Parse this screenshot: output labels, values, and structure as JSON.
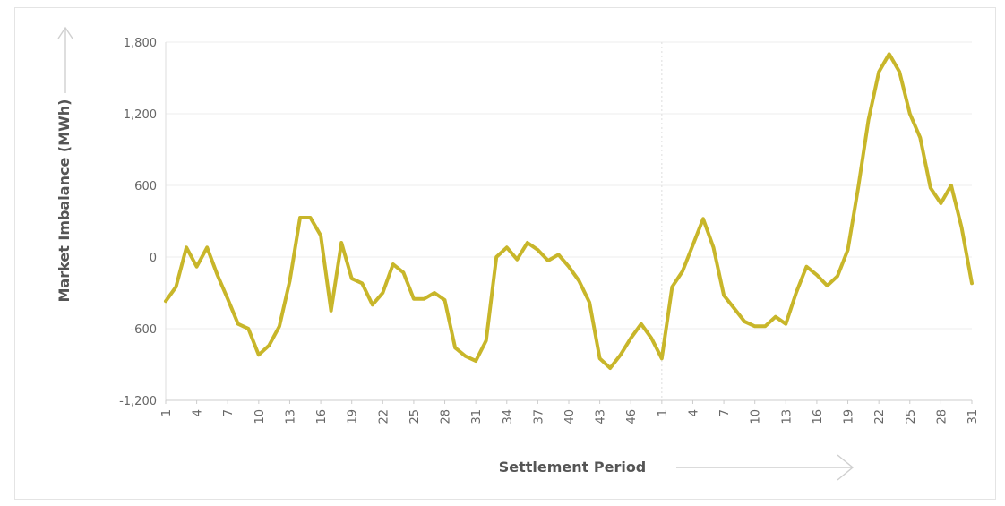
{
  "chart_data": {
    "type": "line",
    "title": "",
    "xlabel": "Settlement Period",
    "ylabel": "Market Imbalance (MWh)",
    "ylim": [
      -1200,
      1800
    ],
    "yticks": [
      -1200,
      -600,
      0,
      600,
      1200,
      1800
    ],
    "ytick_labels": [
      "-1,200",
      "-600",
      "0",
      "600",
      "1,200",
      "1,800"
    ],
    "grid": true,
    "legend": "none",
    "line_color": "#c8b62a",
    "x_tick_labels": [
      "1",
      "4",
      "7",
      "10",
      "13",
      "16",
      "19",
      "22",
      "25",
      "28",
      "31",
      "34",
      "37",
      "40",
      "43",
      "46",
      "1",
      "4",
      "7",
      "10",
      "13",
      "16",
      "19",
      "22",
      "25",
      "28",
      "31"
    ],
    "x": [
      "1",
      "2",
      "3",
      "4",
      "5",
      "6",
      "7",
      "8",
      "9",
      "10",
      "11",
      "12",
      "13",
      "14",
      "15",
      "16",
      "17",
      "18",
      "19",
      "20",
      "21",
      "22",
      "23",
      "24",
      "25",
      "26",
      "27",
      "28",
      "29",
      "30",
      "31",
      "32",
      "33",
      "34",
      "35",
      "36",
      "37",
      "38",
      "39",
      "40",
      "41",
      "42",
      "43",
      "44",
      "45",
      "46",
      "47",
      "48",
      "1",
      "2",
      "3",
      "4",
      "5",
      "6",
      "7",
      "8",
      "9",
      "10",
      "11",
      "12",
      "13",
      "14",
      "15",
      "16",
      "17",
      "18",
      "19",
      "20",
      "21",
      "22",
      "23",
      "24",
      "25",
      "26",
      "27",
      "28",
      "29",
      "30",
      "31"
    ],
    "series": [
      {
        "values": [
          -370,
          -250,
          80,
          -80,
          80,
          -150,
          -350,
          -560,
          -600,
          -820,
          -740,
          -580,
          -200,
          330,
          330,
          180,
          -450,
          120,
          -180,
          -220,
          -400,
          -300,
          -60,
          -130,
          -350,
          -350,
          -300,
          -360,
          -760,
          -830,
          -870,
          -700,
          0,
          80,
          -20,
          120,
          60,
          -30,
          20,
          -80,
          -200,
          -380,
          -850,
          -930,
          -820,
          -680,
          -560,
          -680,
          -850,
          -250,
          -120,
          100,
          320,
          80,
          -320,
          -430,
          -540,
          -580,
          -580,
          -500,
          -560,
          -300,
          -80,
          -150,
          -240,
          -160,
          60,
          580,
          1150,
          1550,
          1700,
          1550,
          1200,
          1000,
          580,
          450,
          600,
          250,
          -220
        ]
      }
    ]
  }
}
